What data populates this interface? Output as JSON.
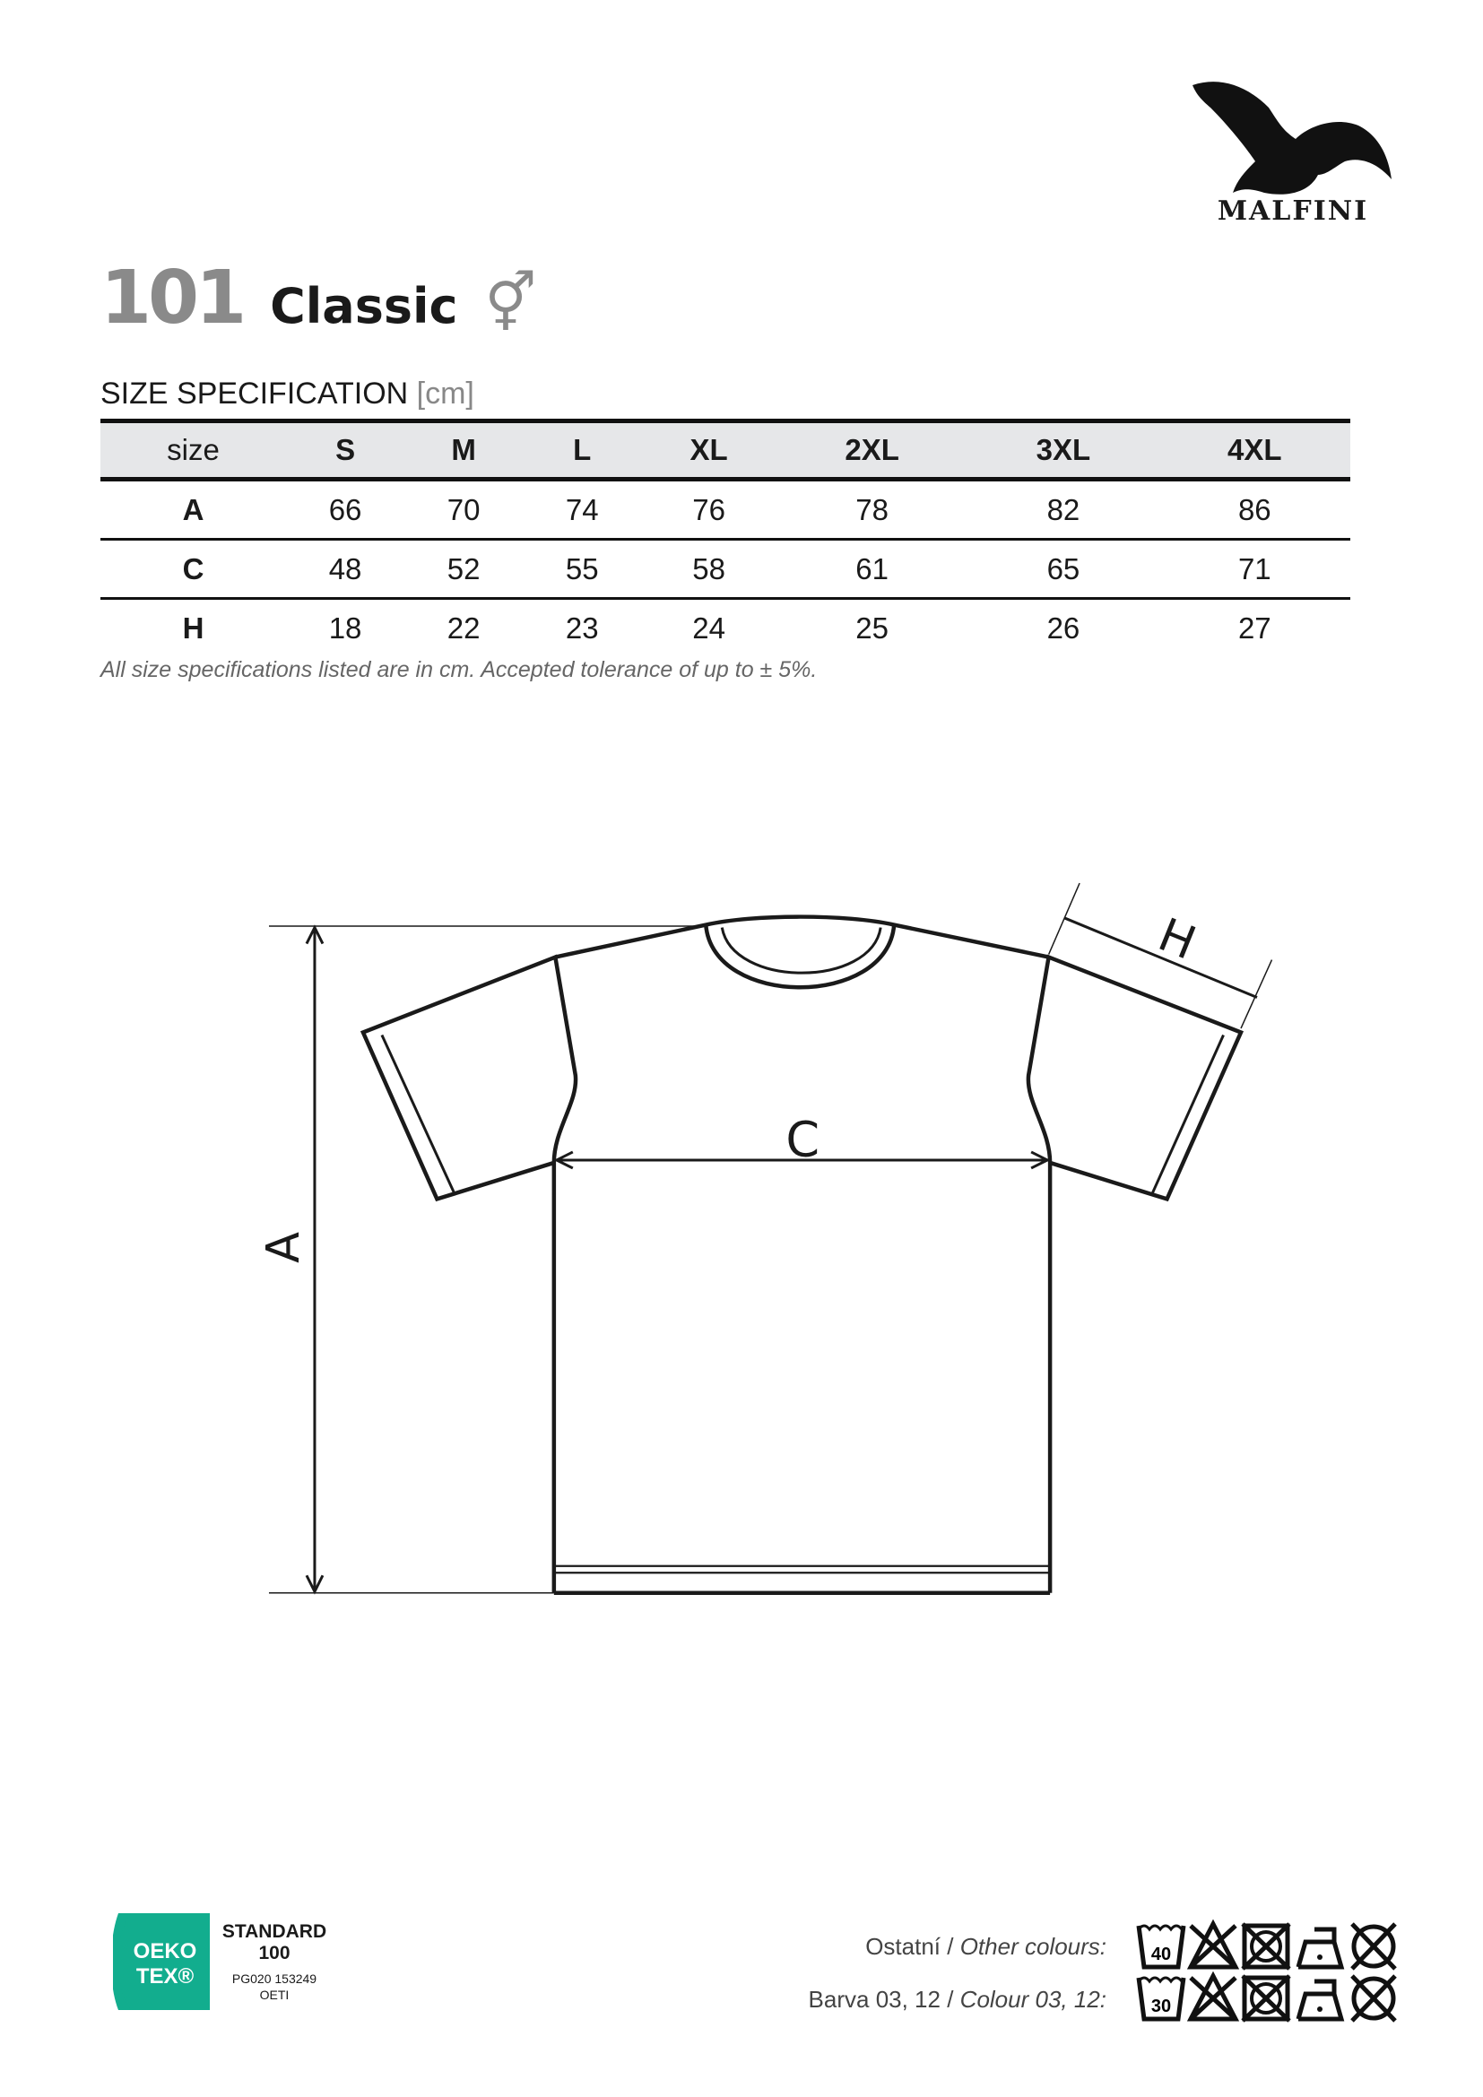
{
  "brand": {
    "name": "MALFINI",
    "logo_icon": "eagle-icon"
  },
  "product": {
    "code": "101",
    "name": "Classic",
    "gender_icon": "unisex-icon",
    "gender_symbol": "⚥"
  },
  "spec": {
    "title": "SIZE SPECIFICATION",
    "unit": "[cm]",
    "columns": [
      "size",
      "S",
      "M",
      "L",
      "XL",
      "2XL",
      "3XL",
      "4XL"
    ],
    "rows": [
      [
        "A",
        "66",
        "70",
        "74",
        "76",
        "78",
        "82",
        "86"
      ],
      [
        "C",
        "48",
        "52",
        "55",
        "58",
        "61",
        "65",
        "71"
      ],
      [
        "H",
        "18",
        "22",
        "23",
        "24",
        "25",
        "26",
        "27"
      ]
    ],
    "note": "All size specifications listed are in cm. Accepted tolerance of up to ± 5%."
  },
  "diagram": {
    "labels": {
      "a": "A",
      "c": "C",
      "h": "H"
    }
  },
  "certification": {
    "logo_line1": "OEKO",
    "logo_line2": "TEX®",
    "standard": "STANDARD",
    "number": "100",
    "code": "PG020 153249",
    "institute": "OETI",
    "color": "#12ad8e"
  },
  "care": {
    "other_label": "Ostatní /",
    "other_label_en": "Other colours:",
    "other_temp": "40",
    "colour_label": "Barva 03, 12 /",
    "colour_label_en": "Colour 03, 12:",
    "colour_temp": "30",
    "icons": [
      "wash-icon",
      "no-bleach-icon",
      "no-tumble-dry-icon",
      "iron-low-icon",
      "no-dry-clean-icon"
    ]
  }
}
